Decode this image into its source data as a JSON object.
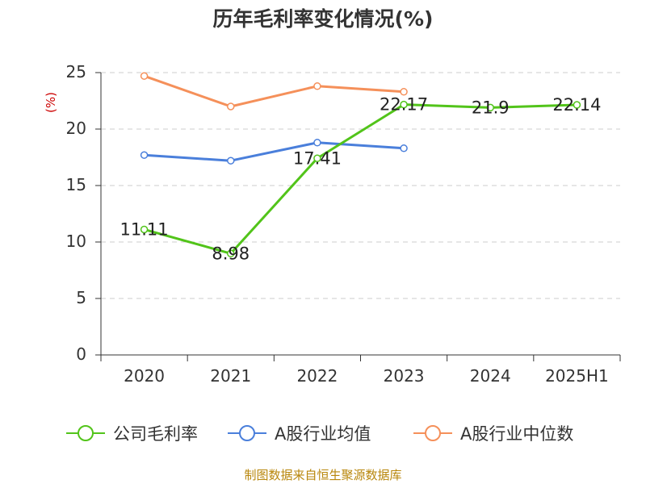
{
  "chart_data": {
    "type": "line",
    "title": "历年毛利率变化情况(%)",
    "ylabel": "(%)",
    "categories": [
      "2020",
      "2021",
      "2022",
      "2023",
      "2024",
      "2025H1"
    ],
    "ylim": [
      0,
      25
    ],
    "yticks": [
      0,
      5,
      10,
      15,
      20,
      25
    ],
    "grid": true,
    "legend_position": "bottom",
    "series": [
      {
        "name": "公司毛利率",
        "color": "#52c41a",
        "values": [
          11.11,
          8.98,
          17.41,
          22.17,
          21.9,
          22.14
        ],
        "show_labels": true
      },
      {
        "name": "A股行业均值",
        "color": "#4a7fdb",
        "values": [
          17.7,
          17.2,
          18.8,
          18.3,
          null,
          null
        ],
        "show_labels": false
      },
      {
        "name": "A股行业中位数",
        "color": "#f5905a",
        "values": [
          24.7,
          22.0,
          23.8,
          23.3,
          null,
          null
        ],
        "show_labels": false
      }
    ]
  },
  "footer": {
    "source": "制图数据来自恒生聚源数据库"
  }
}
